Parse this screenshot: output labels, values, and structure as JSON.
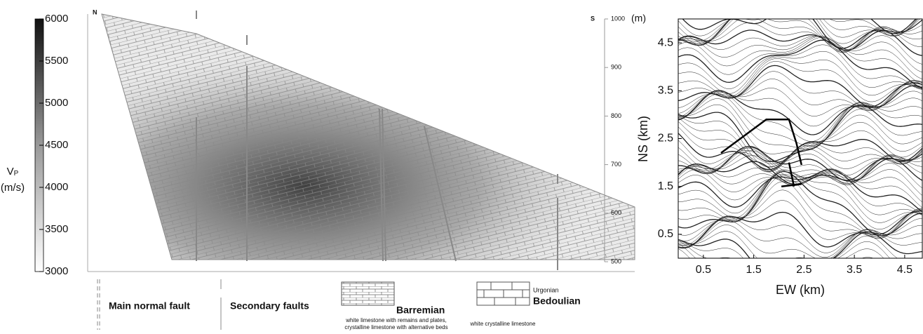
{
  "chart_data": [
    {
      "type": "colorbar",
      "label": "V",
      "label_sub": "P",
      "unit": "(m/s)",
      "ylim": [
        3000,
        6000
      ],
      "yticks": [
        3000,
        3500,
        4000,
        4500,
        5000,
        5500,
        6000
      ]
    },
    {
      "type": "section",
      "left_label": "N",
      "right_label": "S",
      "unit": "(m)",
      "ylim": [
        500,
        1000
      ],
      "yticks": [
        500,
        600,
        700,
        800,
        900,
        1000
      ],
      "legend": {
        "main_fault": "Main normal fault",
        "secondary_faults": "Secondary faults",
        "barremian": "Barremian",
        "barremian_desc": [
          "white limestone with remains and plates,",
          "crystalline limestone with alternative beds"
        ],
        "urgonian": "Urgonian",
        "bedoulian": "Bedoulian",
        "bedoulian_desc": "white crystalline limestone"
      }
    },
    {
      "type": "contour",
      "xlabel": "EW (km)",
      "ylabel": "NS (km)",
      "xlim": [
        0,
        4.85
      ],
      "ylim": [
        0,
        5
      ],
      "xticks": [
        0.5,
        1.5,
        2.5,
        3.5,
        4.5
      ],
      "yticks": [
        0.5,
        1.5,
        2.5,
        3.5,
        4.5
      ],
      "profile": {
        "x": [
          0.85,
          1.75,
          2.2,
          2.35,
          2.45,
          null,
          2.2,
          2.3,
          null,
          2.05,
          2.45
        ],
        "y": [
          2.2,
          2.9,
          2.9,
          2.4,
          1.95,
          null,
          2.0,
          1.5,
          null,
          1.5,
          1.55
        ]
      }
    }
  ]
}
